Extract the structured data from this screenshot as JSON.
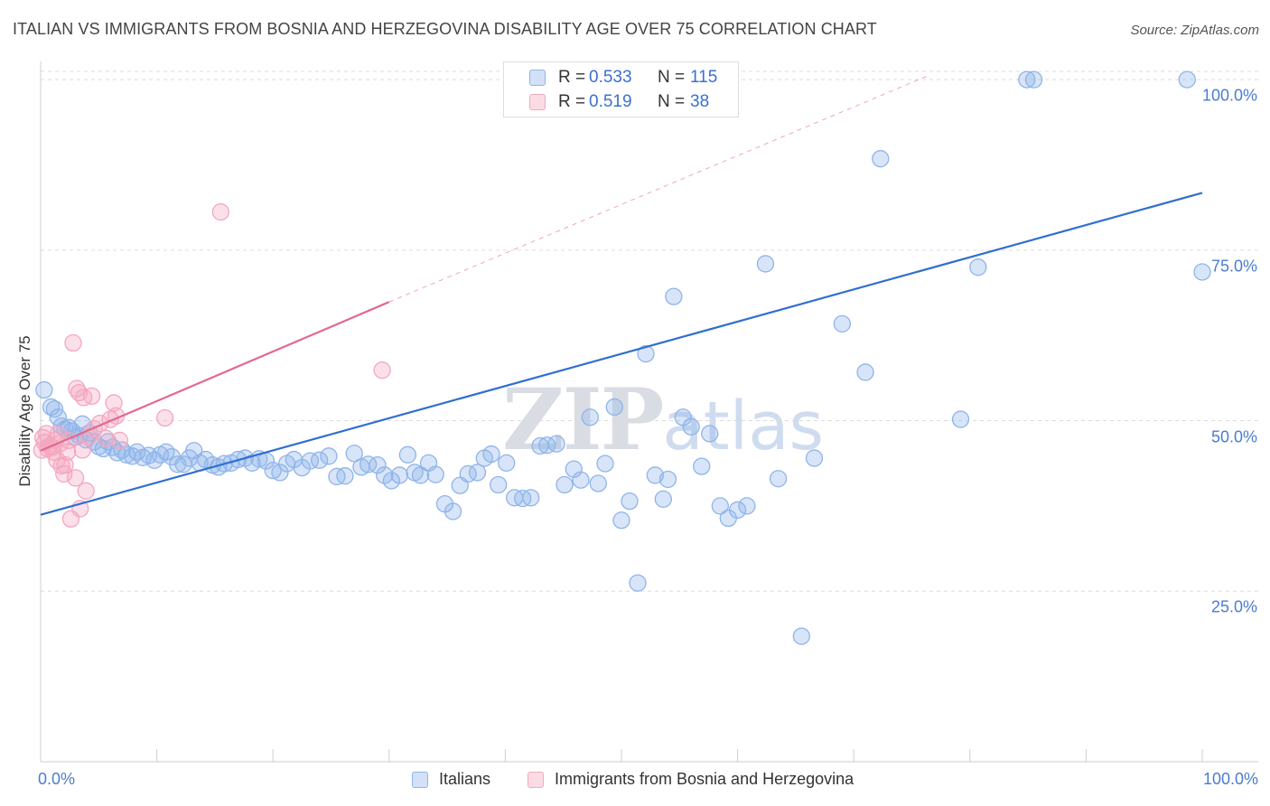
{
  "title": "ITALIAN VS IMMIGRANTS FROM BOSNIA AND HERZEGOVINA DISABILITY AGE OVER 75 CORRELATION CHART",
  "source": "Source: ZipAtlas.com",
  "watermark": {
    "zip": "ZIP",
    "atlas": "atlas"
  },
  "stats": [
    {
      "r_label": "R =",
      "r_value": "0.533",
      "n_label": "N =",
      "n_value": "115",
      "color": "#8fb4ea"
    },
    {
      "r_label": "R =",
      "r_value": "0.519",
      "n_label": "N =",
      "n_value": "38",
      "color": "#f4a7bf"
    }
  ],
  "legend": [
    {
      "label": "Italians",
      "color": "#8fb4ea"
    },
    {
      "label": "Immigrants from Bosnia and Herzegovina",
      "color": "#f4a7bf"
    }
  ],
  "chart_data": {
    "type": "scatter",
    "title": "ITALIAN VS IMMIGRANTS FROM BOSNIA AND HERZEGOVINA DISABILITY AGE OVER 75 CORRELATION CHART",
    "xlabel": "",
    "ylabel": "Disability Age Over 75",
    "xlim": [
      0,
      100
    ],
    "ylim": [
      0,
      102
    ],
    "x_tick_labels": [
      "0.0%",
      "100.0%"
    ],
    "y_ticks": [
      {
        "value": 25,
        "label": "25.0%"
      },
      {
        "value": 50,
        "label": "50.0%"
      },
      {
        "value": 75,
        "label": "75.0%"
      },
      {
        "value": 100,
        "label": "100.0%"
      }
    ],
    "grid": true,
    "series": [
      {
        "name": "Italians",
        "color": "#8fb4ea",
        "line_color": "#2f6fd0",
        "trend": {
          "x0": 0,
          "y0": 36.2,
          "x1": 100,
          "y1": 83.4
        },
        "points": [
          [
            0.3,
            54.5
          ],
          [
            0.9,
            52.0
          ],
          [
            1.2,
            51.7
          ],
          [
            1.5,
            50.5
          ],
          [
            1.8,
            49.2
          ],
          [
            2.1,
            48.8
          ],
          [
            2.4,
            49.0
          ],
          [
            2.7,
            48.5
          ],
          [
            3.0,
            47.6
          ],
          [
            3.3,
            47.8
          ],
          [
            3.6,
            49.5
          ],
          [
            3.9,
            47.2
          ],
          [
            4.2,
            48.2
          ],
          [
            4.6,
            46.9
          ],
          [
            5.0,
            46.2
          ],
          [
            5.4,
            45.9
          ],
          [
            5.8,
            46.9
          ],
          [
            6.2,
            46.1
          ],
          [
            6.6,
            45.3
          ],
          [
            7.0,
            45.7
          ],
          [
            7.4,
            45.0
          ],
          [
            7.9,
            44.8
          ],
          [
            8.3,
            45.4
          ],
          [
            8.8,
            44.6
          ],
          [
            9.3,
            44.9
          ],
          [
            9.8,
            44.2
          ],
          [
            10.3,
            45.0
          ],
          [
            10.8,
            45.4
          ],
          [
            11.3,
            44.7
          ],
          [
            11.8,
            43.6
          ],
          [
            12.3,
            43.6
          ],
          [
            12.8,
            44.5
          ],
          [
            13.2,
            45.6
          ],
          [
            13.7,
            43.8
          ],
          [
            14.2,
            44.3
          ],
          [
            14.8,
            43.5
          ],
          [
            15.3,
            43.2
          ],
          [
            15.8,
            43.7
          ],
          [
            16.4,
            43.8
          ],
          [
            17.0,
            44.3
          ],
          [
            17.6,
            44.5
          ],
          [
            18.2,
            43.8
          ],
          [
            18.8,
            44.4
          ],
          [
            19.4,
            44.1
          ],
          [
            20.0,
            42.7
          ],
          [
            20.6,
            42.4
          ],
          [
            21.2,
            43.7
          ],
          [
            21.8,
            44.3
          ],
          [
            22.5,
            43.1
          ],
          [
            23.2,
            44.1
          ],
          [
            24.0,
            44.2
          ],
          [
            24.8,
            44.8
          ],
          [
            25.5,
            41.8
          ],
          [
            26.2,
            41.9
          ],
          [
            27.0,
            45.2
          ],
          [
            27.6,
            43.2
          ],
          [
            28.2,
            43.6
          ],
          [
            29.0,
            43.5
          ],
          [
            29.6,
            42.0
          ],
          [
            30.2,
            41.2
          ],
          [
            30.9,
            42.0
          ],
          [
            31.6,
            45.0
          ],
          [
            32.2,
            42.4
          ],
          [
            32.7,
            42.0
          ],
          [
            33.4,
            43.8
          ],
          [
            34.0,
            42.1
          ],
          [
            34.8,
            37.8
          ],
          [
            35.5,
            36.7
          ],
          [
            36.1,
            40.5
          ],
          [
            36.8,
            42.2
          ],
          [
            37.6,
            42.4
          ],
          [
            38.2,
            44.5
          ],
          [
            38.8,
            45.1
          ],
          [
            39.4,
            40.6
          ],
          [
            40.1,
            43.8
          ],
          [
            40.8,
            38.7
          ],
          [
            41.5,
            38.6
          ],
          [
            42.2,
            38.7
          ],
          [
            43.0,
            46.3
          ],
          [
            43.6,
            46.4
          ],
          [
            44.4,
            46.6
          ],
          [
            45.1,
            40.6
          ],
          [
            45.9,
            42.9
          ],
          [
            46.5,
            41.3
          ],
          [
            47.3,
            50.5
          ],
          [
            48.0,
            40.8
          ],
          [
            48.6,
            43.7
          ],
          [
            49.4,
            52.0
          ],
          [
            50.0,
            35.4
          ],
          [
            50.7,
            38.2
          ],
          [
            51.4,
            26.2
          ],
          [
            52.1,
            59.8
          ],
          [
            52.9,
            42.0
          ],
          [
            53.6,
            38.5
          ],
          [
            54.0,
            41.4
          ],
          [
            54.5,
            68.2
          ],
          [
            55.3,
            50.5
          ],
          [
            56.0,
            49.1
          ],
          [
            56.9,
            43.3
          ],
          [
            57.6,
            48.1
          ],
          [
            58.5,
            37.5
          ],
          [
            59.2,
            35.7
          ],
          [
            60.0,
            36.9
          ],
          [
            60.8,
            37.5
          ],
          [
            62.4,
            73.0
          ],
          [
            63.5,
            41.5
          ],
          [
            65.5,
            18.4
          ],
          [
            66.6,
            44.5
          ],
          [
            69.0,
            64.2
          ],
          [
            71.0,
            57.1
          ],
          [
            72.3,
            88.4
          ],
          [
            79.2,
            50.2
          ],
          [
            80.7,
            72.5
          ],
          [
            84.9,
            100.0
          ],
          [
            85.5,
            100.0
          ],
          [
            98.7,
            100.0
          ],
          [
            100.0,
            71.8
          ]
        ]
      },
      {
        "name": "Immigrants from Bosnia and Herzegovina",
        "color": "#f4a7bf",
        "line_color": "#e2698f",
        "trend": {
          "x0": 0,
          "y0": 45.6,
          "x1": 30,
          "y1": 67.4
        },
        "dashed_extension": {
          "x0": 30,
          "y0": 67.4,
          "x1": 76.3,
          "y1": 100.5
        },
        "points": [
          [
            0.1,
            45.7
          ],
          [
            0.2,
            47.5
          ],
          [
            0.35,
            46.8
          ],
          [
            0.5,
            48.1
          ],
          [
            0.6,
            45.9
          ],
          [
            0.8,
            46.3
          ],
          [
            1.0,
            46.1
          ],
          [
            1.1,
            45.4
          ],
          [
            1.3,
            47.2
          ],
          [
            1.4,
            44.2
          ],
          [
            1.5,
            48.0
          ],
          [
            1.7,
            46.7
          ],
          [
            1.8,
            43.4
          ],
          [
            2.0,
            42.2
          ],
          [
            2.1,
            43.5
          ],
          [
            2.3,
            45.4
          ],
          [
            2.4,
            47.1
          ],
          [
            2.6,
            35.6
          ],
          [
            2.8,
            61.4
          ],
          [
            3.0,
            41.6
          ],
          [
            3.1,
            54.7
          ],
          [
            3.3,
            54.1
          ],
          [
            3.4,
            37.1
          ],
          [
            3.6,
            45.7
          ],
          [
            3.7,
            53.4
          ],
          [
            3.9,
            39.7
          ],
          [
            4.1,
            47.6
          ],
          [
            4.4,
            53.6
          ],
          [
            4.6,
            48.8
          ],
          [
            5.1,
            49.6
          ],
          [
            5.6,
            47.4
          ],
          [
            6.0,
            50.2
          ],
          [
            6.3,
            52.6
          ],
          [
            6.5,
            50.7
          ],
          [
            6.8,
            47.1
          ],
          [
            10.7,
            50.4
          ],
          [
            15.5,
            80.6
          ],
          [
            29.4,
            57.4
          ]
        ]
      }
    ]
  }
}
